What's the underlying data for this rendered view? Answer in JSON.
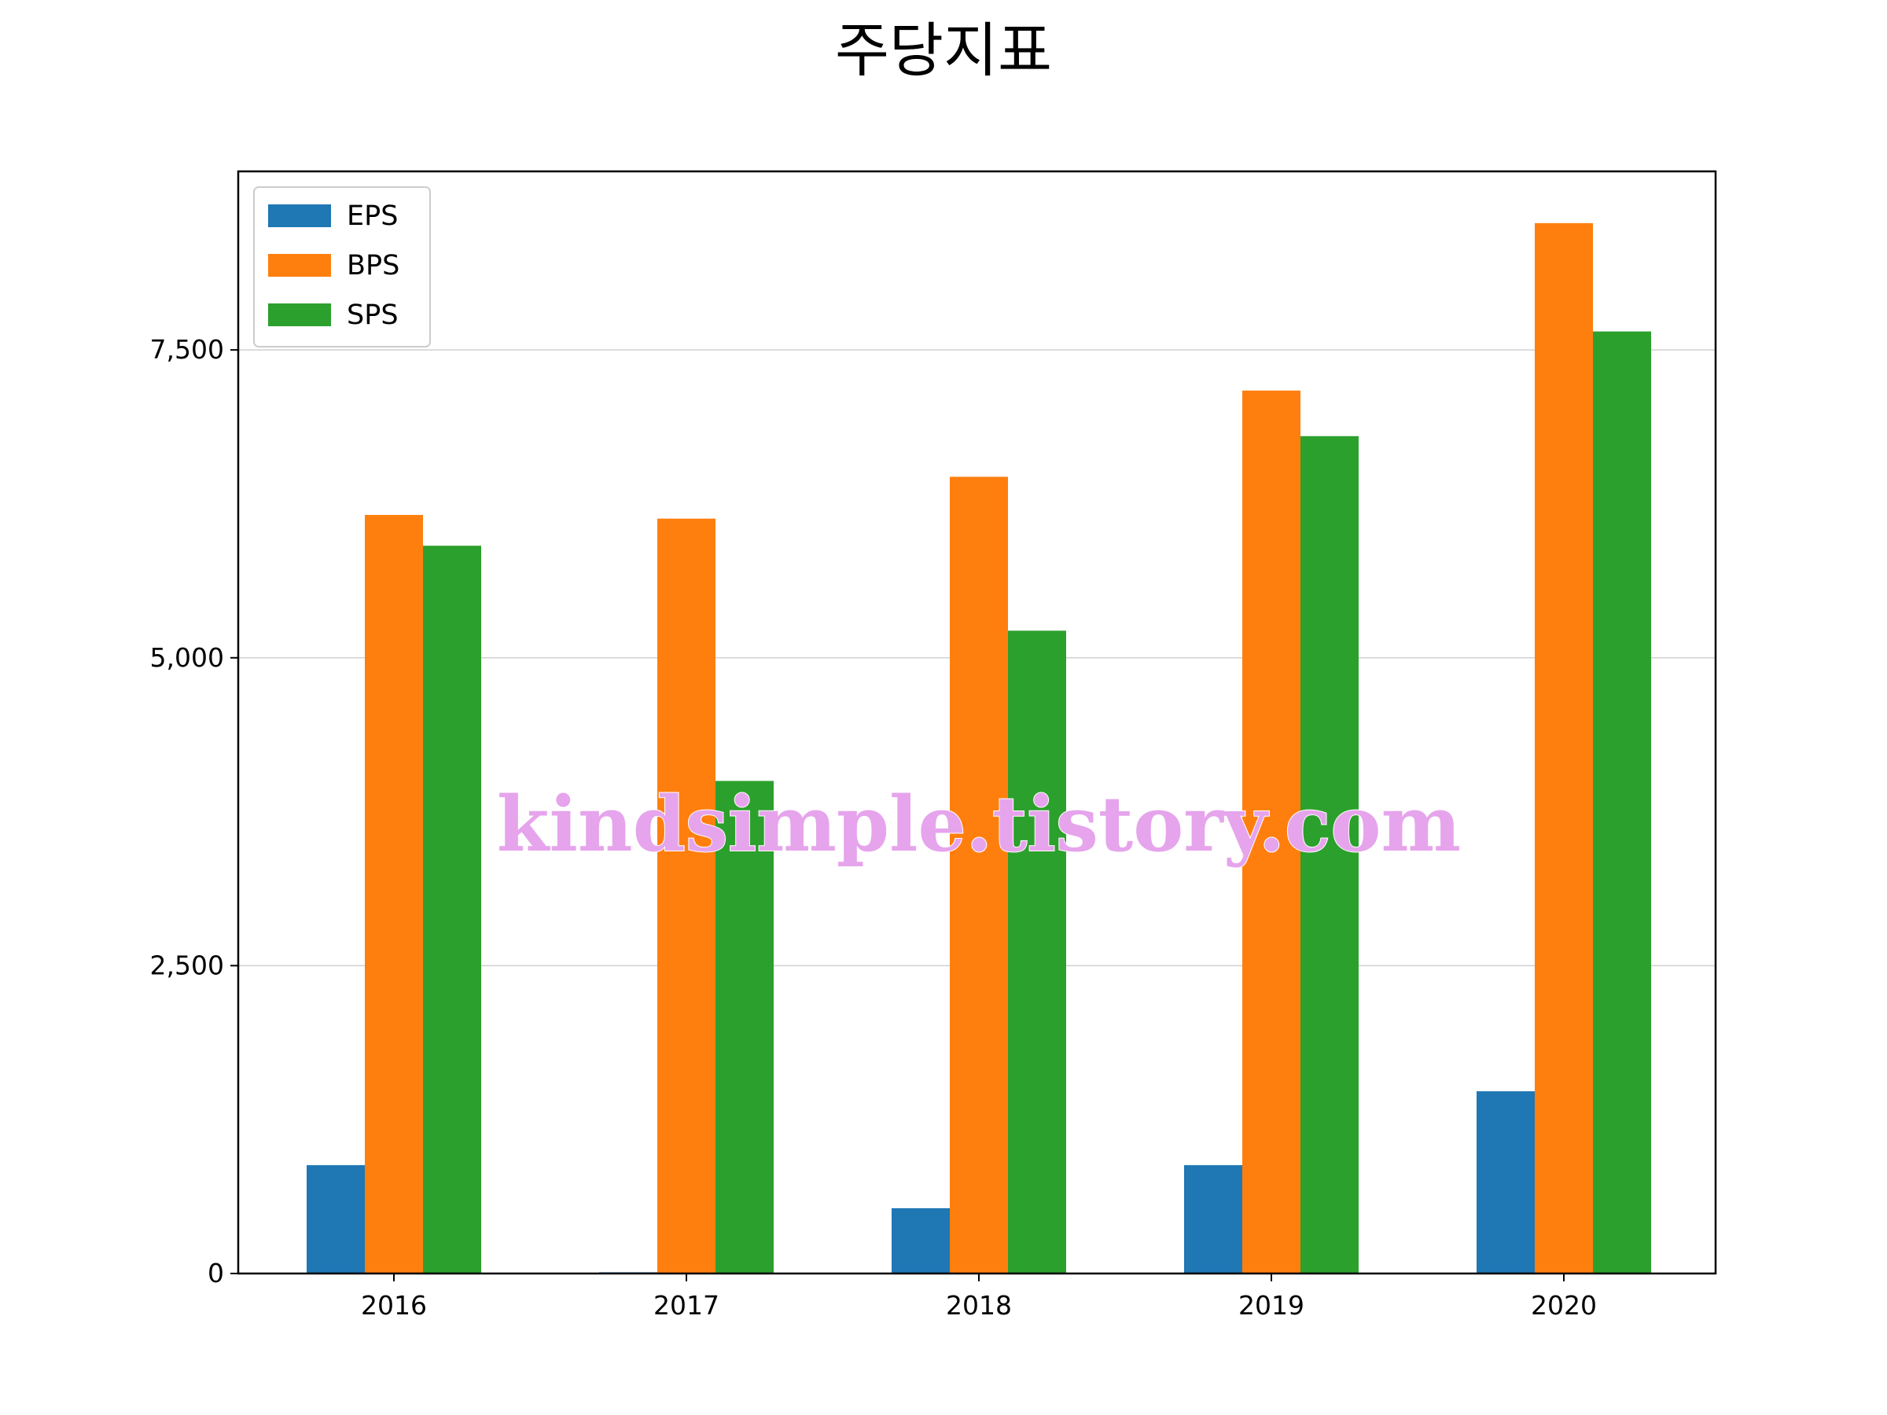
{
  "chart_data": {
    "type": "bar",
    "title": "주당지표",
    "xlabel": "",
    "ylabel": "",
    "categories": [
      "2016",
      "2017",
      "2018",
      "2019",
      "2020"
    ],
    "series": [
      {
        "name": "EPS",
        "color": "#1f77b4",
        "values": [
          880,
          10,
          530,
          880,
          1480
        ]
      },
      {
        "name": "BPS",
        "color": "#ff7f0e",
        "values": [
          6160,
          6130,
          6470,
          7170,
          8530
        ]
      },
      {
        "name": "SPS",
        "color": "#2ca02c",
        "values": [
          5910,
          4000,
          5220,
          6800,
          7650
        ]
      }
    ],
    "ylim": [
      0,
      8950
    ],
    "yticks": [
      0,
      2500,
      5000,
      7500
    ],
    "ytick_labels": [
      "0",
      "2,500",
      "5,000",
      "7,500"
    ],
    "grid": "horizontal",
    "legend_position": "top-left"
  },
  "watermark": "kindsimple.tistory.com"
}
